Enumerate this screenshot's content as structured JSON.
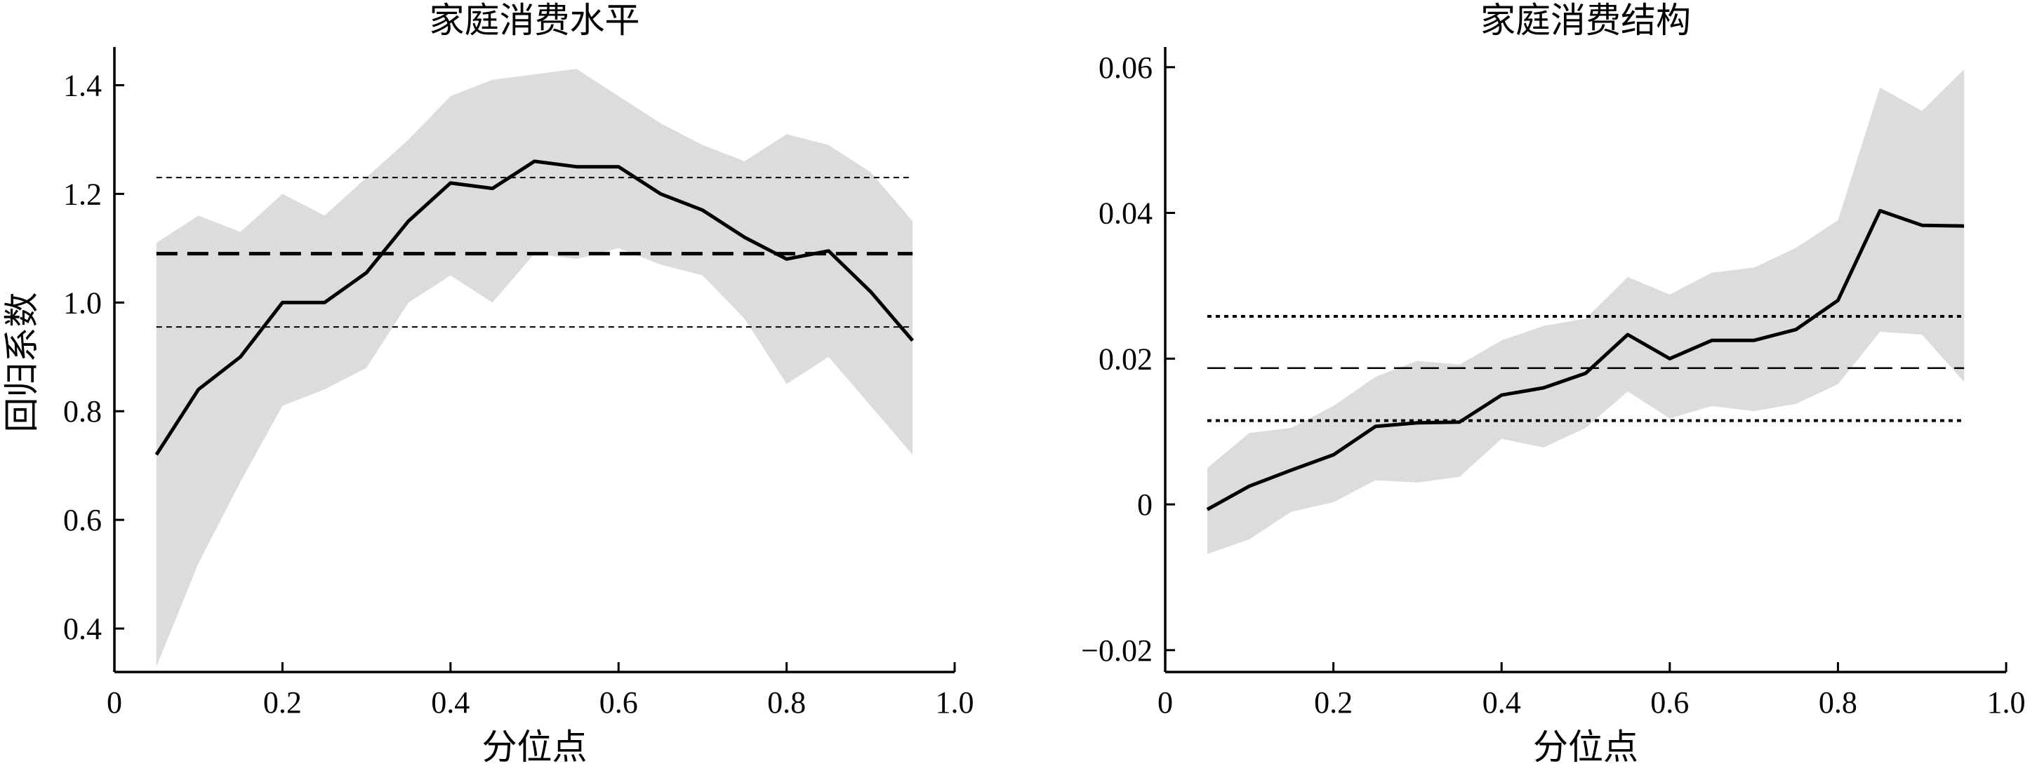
{
  "chart_data": [
    {
      "type": "line",
      "title": "家庭消费水平",
      "xlabel": "分位点",
      "ylabel": "回归系数",
      "xlim": [
        0,
        1.0
      ],
      "ylim": [
        0.32,
        1.46
      ],
      "x_ticks": [
        0,
        0.2,
        0.4,
        0.6,
        0.8,
        1.0
      ],
      "x_tick_labels": [
        "0",
        "0.2",
        "0.4",
        "0.6",
        "0.8",
        "1.0"
      ],
      "y_ticks": [
        0.4,
        0.6,
        0.8,
        1.0,
        1.2,
        1.4
      ],
      "y_tick_labels": [
        "0.4",
        "0.6",
        "0.8",
        "1.0",
        "1.2",
        "1.4"
      ],
      "grid": false,
      "quantile_estimate": {
        "x": [
          0.05,
          0.1,
          0.15,
          0.2,
          0.25,
          0.3,
          0.35,
          0.4,
          0.45,
          0.5,
          0.55,
          0.6,
          0.65,
          0.7,
          0.75,
          0.8,
          0.85,
          0.9,
          0.95
        ],
        "y": [
          0.72,
          0.84,
          0.9,
          1.0,
          1.0,
          1.055,
          1.15,
          1.22,
          1.21,
          1.26,
          1.25,
          1.25,
          1.2,
          1.17,
          1.12,
          1.08,
          1.095,
          1.02,
          0.93
        ]
      },
      "confidence_band": {
        "upper": [
          1.11,
          1.16,
          1.13,
          1.2,
          1.16,
          1.23,
          1.3,
          1.38,
          1.41,
          1.42,
          1.43,
          1.38,
          1.33,
          1.29,
          1.26,
          1.31,
          1.29,
          1.24,
          1.15
        ],
        "lower": [
          0.33,
          0.52,
          0.67,
          0.81,
          0.84,
          0.88,
          1.0,
          1.05,
          1.0,
          1.09,
          1.08,
          1.1,
          1.07,
          1.05,
          0.97,
          0.85,
          0.9,
          0.81,
          0.72
        ]
      },
      "ols_estimate": 1.09,
      "ols_ci": [
        0.955,
        1.23
      ],
      "colors": {
        "band": "#dcdcdc",
        "line": "#000000"
      }
    },
    {
      "type": "line",
      "title": "家庭消费结构",
      "xlabel": "分位点",
      "ylabel": "",
      "xlim": [
        0,
        1.0
      ],
      "ylim": [
        -0.023,
        0.062
      ],
      "x_ticks": [
        0,
        0.2,
        0.4,
        0.6,
        0.8,
        1.0
      ],
      "x_tick_labels": [
        "0",
        "0.2",
        "0.4",
        "0.6",
        "0.8",
        "1.0"
      ],
      "y_ticks": [
        -0.02,
        0,
        0.02,
        0.04,
        0.06
      ],
      "y_tick_labels": [
        "−0.02",
        "0",
        "0.02",
        "0.04",
        "0.06"
      ],
      "grid": false,
      "quantile_estimate": {
        "x": [
          0.05,
          0.1,
          0.15,
          0.2,
          0.25,
          0.3,
          0.35,
          0.4,
          0.45,
          0.5,
          0.55,
          0.6,
          0.65,
          0.7,
          0.75,
          0.8,
          0.85,
          0.9,
          0.95
        ],
        "y": [
          -0.0007,
          0.0025,
          0.0047,
          0.0068,
          0.0107,
          0.0112,
          0.0113,
          0.015,
          0.016,
          0.018,
          0.0233,
          0.02,
          0.0225,
          0.0225,
          0.024,
          0.028,
          0.0403,
          0.0383,
          0.0382
        ]
      },
      "confidence_band": {
        "upper": [
          0.005,
          0.0098,
          0.0105,
          0.0135,
          0.0175,
          0.0197,
          0.0192,
          0.0225,
          0.0245,
          0.0255,
          0.0312,
          0.0288,
          0.0318,
          0.0325,
          0.0352,
          0.039,
          0.0572,
          0.054,
          0.0597
        ],
        "lower": [
          -0.0068,
          -0.0048,
          -0.001,
          0.0003,
          0.0033,
          0.003,
          0.0038,
          0.009,
          0.0078,
          0.0105,
          0.0155,
          0.0118,
          0.0135,
          0.0128,
          0.0138,
          0.0165,
          0.0237,
          0.0233,
          0.0168
        ]
      },
      "ols_estimate": 0.0187,
      "ols_ci": [
        0.0115,
        0.0258
      ],
      "colors": {
        "band": "#dcdcdc",
        "line": "#000000"
      }
    }
  ]
}
